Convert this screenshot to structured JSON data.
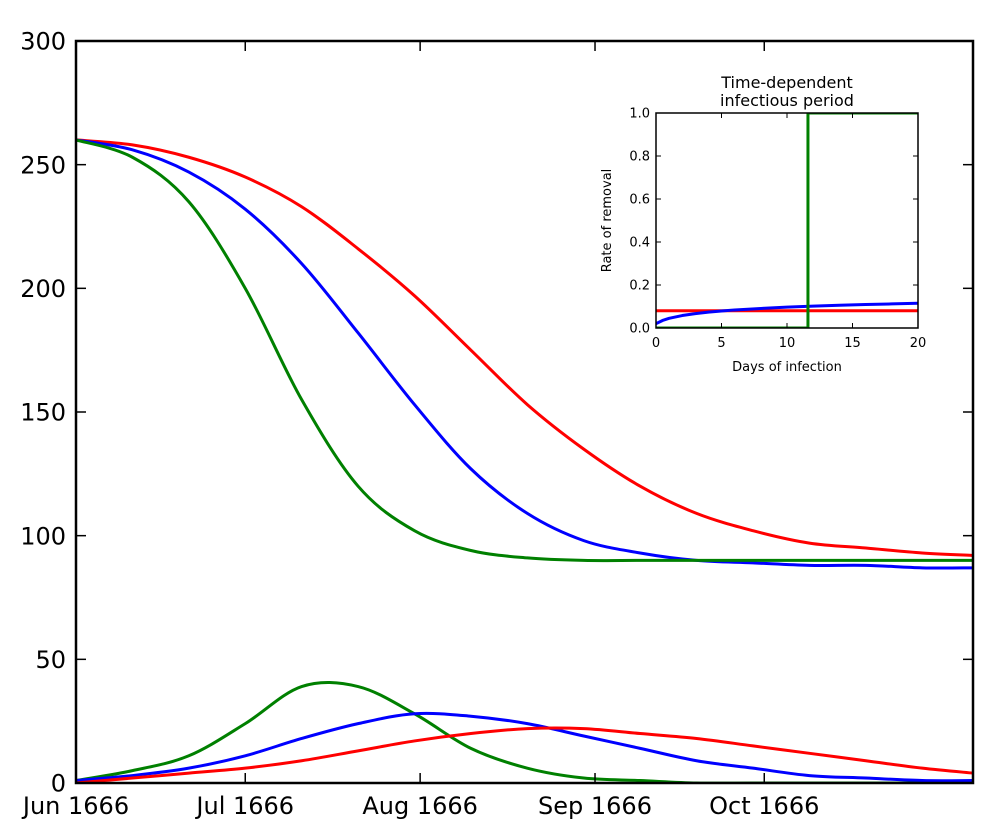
{
  "chart_data": [
    {
      "type": "line",
      "title": "",
      "xlabel": "",
      "ylabel": "",
      "x_ticks": [
        "Jun 1666",
        "Jul 1666",
        "Aug 1666",
        "Sep 1666",
        "Oct 1666"
      ],
      "x_tick_days": [
        0,
        30,
        61,
        92,
        122
      ],
      "xlim_days": [
        0,
        159
      ],
      "xlim_dates": [
        "1666-06-01",
        "1666-11-06"
      ],
      "ylim": [
        0,
        300
      ],
      "y_ticks": [
        "0",
        "50",
        "100",
        "150",
        "200",
        "250",
        "300"
      ],
      "grid": false,
      "legend": "none",
      "series": [
        {
          "color": "#ff0000",
          "x": [
            0,
            10,
            20,
            30,
            40,
            50,
            60,
            70,
            80,
            90,
            100,
            110,
            120,
            130,
            140,
            150,
            159
          ],
          "values": [
            260,
            258,
            253,
            245,
            233,
            216,
            197,
            175,
            153,
            135,
            120,
            109,
            102,
            97,
            95,
            93,
            92
          ]
        },
        {
          "color": "#0000ff",
          "x": [
            0,
            10,
            20,
            30,
            40,
            50,
            60,
            70,
            80,
            90,
            100,
            110,
            120,
            130,
            140,
            150,
            159
          ],
          "values": [
            260,
            256,
            247,
            232,
            210,
            182,
            153,
            127,
            109,
            98,
            93,
            90,
            89,
            88,
            88,
            87,
            87
          ]
        },
        {
          "color": "#008000",
          "x": [
            0,
            10,
            20,
            30,
            40,
            50,
            60,
            70,
            80,
            90,
            100,
            110,
            120,
            130,
            140,
            150,
            159
          ],
          "values": [
            260,
            253,
            235,
            200,
            155,
            120,
            102,
            94,
            91,
            90,
            90,
            90,
            90,
            90,
            90,
            90,
            90
          ]
        },
        {
          "color": "#008000",
          "x": [
            0,
            10,
            20,
            30,
            40,
            50,
            60,
            70,
            80,
            90,
            100,
            110,
            120,
            130,
            140,
            150,
            159
          ],
          "values": [
            1,
            5,
            11,
            24,
            39,
            39,
            28,
            14,
            6,
            2,
            1,
            0,
            0,
            0,
            0,
            0,
            0
          ]
        },
        {
          "color": "#0000ff",
          "x": [
            0,
            10,
            20,
            30,
            40,
            50,
            60,
            70,
            80,
            90,
            100,
            110,
            120,
            130,
            140,
            150,
            159
          ],
          "values": [
            1,
            3,
            6,
            11,
            18,
            24,
            28,
            27,
            24,
            19,
            14,
            9,
            6,
            3,
            2,
            1,
            1
          ]
        },
        {
          "color": "#ff0000",
          "x": [
            0,
            10,
            20,
            30,
            40,
            50,
            60,
            70,
            80,
            90,
            100,
            110,
            120,
            130,
            140,
            150,
            159
          ],
          "values": [
            0,
            2,
            4,
            6,
            9,
            13,
            17,
            20,
            22,
            22,
            20,
            18,
            15,
            12,
            9,
            6,
            4
          ]
        }
      ]
    },
    {
      "type": "line",
      "title": "Time-dependent\ninfectious period",
      "title_lines": [
        "Time-dependent",
        "infectious period"
      ],
      "xlabel": "Days of infection",
      "ylabel": "Rate of removal",
      "xlim": [
        0,
        20
      ],
      "ylim": [
        0,
        1
      ],
      "x_ticks": [
        "0",
        "5",
        "10",
        "15",
        "20"
      ],
      "y_ticks": [
        "0.0",
        "0.2",
        "0.4",
        "0.6",
        "0.8",
        "1.0"
      ],
      "grid": false,
      "legend": "none",
      "series": [
        {
          "color": "#ff0000",
          "x": [
            0,
            20
          ],
          "values": [
            0.08,
            0.08
          ]
        },
        {
          "color": "#0000ff",
          "x": [
            0,
            0.5,
            1,
            2,
            3,
            4,
            5,
            6,
            8,
            10,
            12,
            14,
            16,
            18,
            20
          ],
          "values": [
            0.02,
            0.035,
            0.045,
            0.058,
            0.067,
            0.074,
            0.079,
            0.084,
            0.091,
            0.097,
            0.102,
            0.106,
            0.109,
            0.112,
            0.115
          ]
        },
        {
          "color": "#008000",
          "x": [
            0,
            11.6,
            11.6,
            20
          ],
          "values": [
            0,
            0,
            1,
            1
          ]
        }
      ]
    }
  ]
}
